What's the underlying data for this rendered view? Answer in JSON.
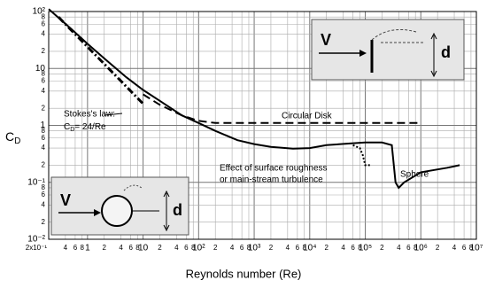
{
  "chart_data": {
    "type": "line",
    "log_x": true,
    "log_y": true,
    "grid": true,
    "x_label": "Reynolds number (Re)",
    "y_label": {
      "main": "C",
      "sub": "D"
    },
    "xlim": [
      0.2,
      10000000
    ],
    "ylim": [
      0.01,
      100
    ],
    "xticks": [
      {
        "value": 0.2,
        "label": "2x10⁻¹"
      },
      {
        "value": 0.4,
        "label": "4"
      },
      {
        "value": 0.6,
        "label": "6"
      },
      {
        "value": 0.8,
        "label": "8"
      },
      1,
      2,
      4,
      6,
      8,
      10,
      {
        "value": 20,
        "label": "2"
      },
      {
        "value": 40,
        "label": "4"
      },
      {
        "value": 60,
        "label": "6"
      },
      {
        "value": 80,
        "label": "8"
      },
      {
        "value": 100,
        "label": "10²"
      },
      {
        "value": 200,
        "label": "2"
      },
      {
        "value": 400,
        "label": "4"
      },
      {
        "value": 600,
        "label": "6"
      },
      {
        "value": 800,
        "label": "8"
      },
      {
        "value": 1000,
        "label": "10³"
      },
      {
        "value": 2000,
        "label": "2"
      },
      {
        "value": 4000,
        "label": "4"
      },
      {
        "value": 6000,
        "label": "6"
      },
      {
        "value": 8000,
        "label": "8"
      },
      {
        "value": 10000,
        "label": "10⁴"
      },
      {
        "value": 20000,
        "label": "2"
      },
      {
        "value": 40000,
        "label": "4"
      },
      {
        "value": 60000,
        "label": "6"
      },
      {
        "value": 80000,
        "label": "8"
      },
      {
        "value": 100000,
        "label": "10⁵"
      },
      {
        "value": 200000,
        "label": "2"
      },
      {
        "value": 400000,
        "label": "4"
      },
      {
        "value": 600000,
        "label": "6"
      },
      {
        "value": 800000,
        "label": "8"
      },
      {
        "value": 1000000,
        "label": "10⁶"
      },
      {
        "value": 2000000,
        "label": "2"
      },
      {
        "value": 4000000,
        "label": "4"
      },
      {
        "value": 6000000,
        "label": "6"
      },
      {
        "value": 8000000,
        "label": "8"
      },
      {
        "value": 10000000,
        "label": "10⁷"
      }
    ],
    "yticks": [
      {
        "value": 0.01,
        "label": "10⁻²"
      },
      {
        "value": 0.02,
        "label": "2"
      },
      {
        "value": 0.04,
        "label": "4"
      },
      {
        "value": 0.06,
        "label": "6"
      },
      {
        "value": 0.08,
        "label": "8"
      },
      {
        "value": 0.1,
        "label": "10⁻¹"
      },
      {
        "value": 0.2,
        "label": "2"
      },
      {
        "value": 0.4,
        "label": "4"
      },
      {
        "value": 0.6,
        "label": "6"
      },
      {
        "value": 0.8,
        "label": "8"
      },
      1,
      2,
      4,
      6,
      8,
      10,
      {
        "value": 20,
        "label": "2"
      },
      {
        "value": 40,
        "label": "4"
      },
      {
        "value": 60,
        "label": "6"
      },
      {
        "value": 80,
        "label": "8"
      },
      {
        "value": 100,
        "label": "10²"
      }
    ],
    "series": [
      {
        "style": "solid",
        "color": "#000000",
        "x": [
          0.2,
          0.5,
          1,
          2,
          5,
          10,
          20,
          50,
          100,
          200,
          500,
          1000,
          2000,
          5000,
          10000,
          20000,
          50000,
          100000,
          200000,
          300000,
          350000,
          400000,
          500000,
          1000000,
          3000000,
          5000000
        ],
        "values": [
          110,
          50,
          27,
          15,
          7,
          4.2,
          2.7,
          1.5,
          1.1,
          0.8,
          0.55,
          0.47,
          0.42,
          0.39,
          0.4,
          0.45,
          0.48,
          0.5,
          0.5,
          0.45,
          0.1,
          0.08,
          0.1,
          0.15,
          0.18,
          0.2
        ]
      },
      {
        "style": "dashed",
        "color": "#000000",
        "x": [
          10,
          20,
          50,
          100,
          200,
          1000,
          1000000
        ],
        "values": [
          3.5,
          2.3,
          1.5,
          1.2,
          1.1,
          1.1,
          1.1
        ]
      },
      {
        "style": "dashdot",
        "color": "#000000",
        "x": [
          0.3,
          10
        ],
        "values": [
          80,
          2.4
        ]
      },
      {
        "style": "dotted",
        "color": "#000000",
        "x": [
          60000,
          80000,
          90000,
          100000,
          130000
        ],
        "values": [
          0.45,
          0.4,
          0.3,
          0.2,
          0.2
        ]
      }
    ],
    "annotations": [
      "Circular Disk",
      "Stokes's law:",
      {
        "main": "C",
        "sub": "D",
        "rest": "= 24/Re"
      },
      "Effect of surface roughness",
      "or main-stream turbulence",
      "Sphere"
    ],
    "insets": [
      {
        "v": "V",
        "d": "d"
      },
      {
        "v": "V",
        "d": "d"
      }
    ]
  }
}
